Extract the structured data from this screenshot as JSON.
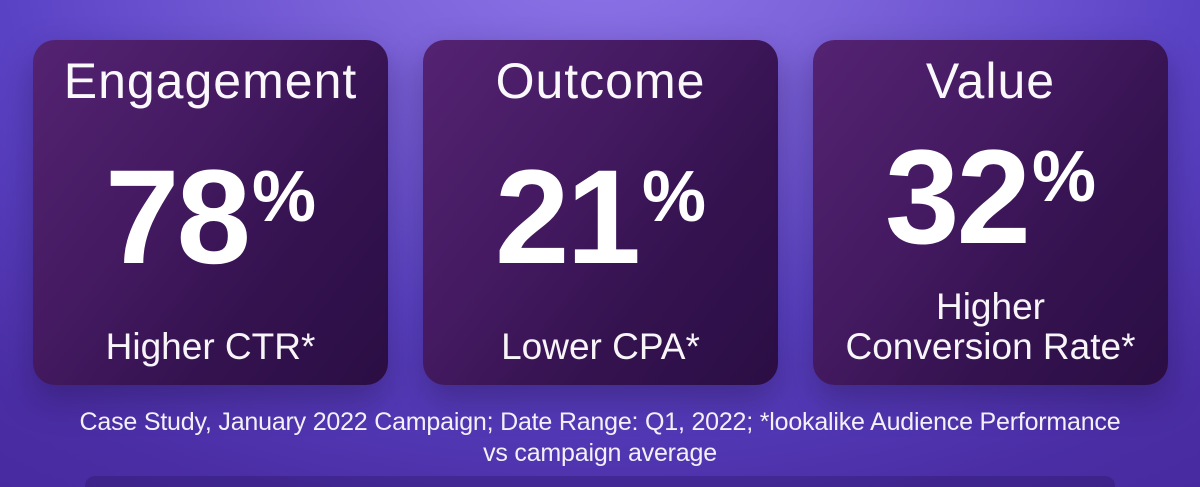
{
  "theme": {
    "background_top_color": "#8E74E8",
    "background_bottom_color": "#46289B",
    "card_gradient_start": "#542372",
    "card_gradient_end": "#2B0E44",
    "text_color": "#FFFFFF"
  },
  "cards": [
    {
      "title": "Engagement",
      "value": "78",
      "unit": "%",
      "label": "Higher CTR*"
    },
    {
      "title": "Outcome",
      "value": "21",
      "unit": "%",
      "label": "Lower CPA*"
    },
    {
      "title": "Value",
      "value": "32",
      "unit": "%",
      "label": "Higher\nConversion Rate*"
    }
  ],
  "footnote": {
    "line1": "Case Study, January 2022 Campaign; Date Range: Q1, 2022; *lookalike Audience Performance",
    "line2": "vs campaign average"
  },
  "chart_data": {
    "type": "table",
    "categories": [
      "Engagement",
      "Outcome",
      "Value"
    ],
    "values": [
      78,
      21,
      32
    ],
    "unit": "%",
    "value_descriptions": [
      "Higher CTR*",
      "Lower CPA*",
      "Higher Conversion Rate*"
    ],
    "footnote": "Case Study, January 2022 Campaign; Date Range: Q1, 2022; *lookalike Audience Performance vs campaign average"
  }
}
